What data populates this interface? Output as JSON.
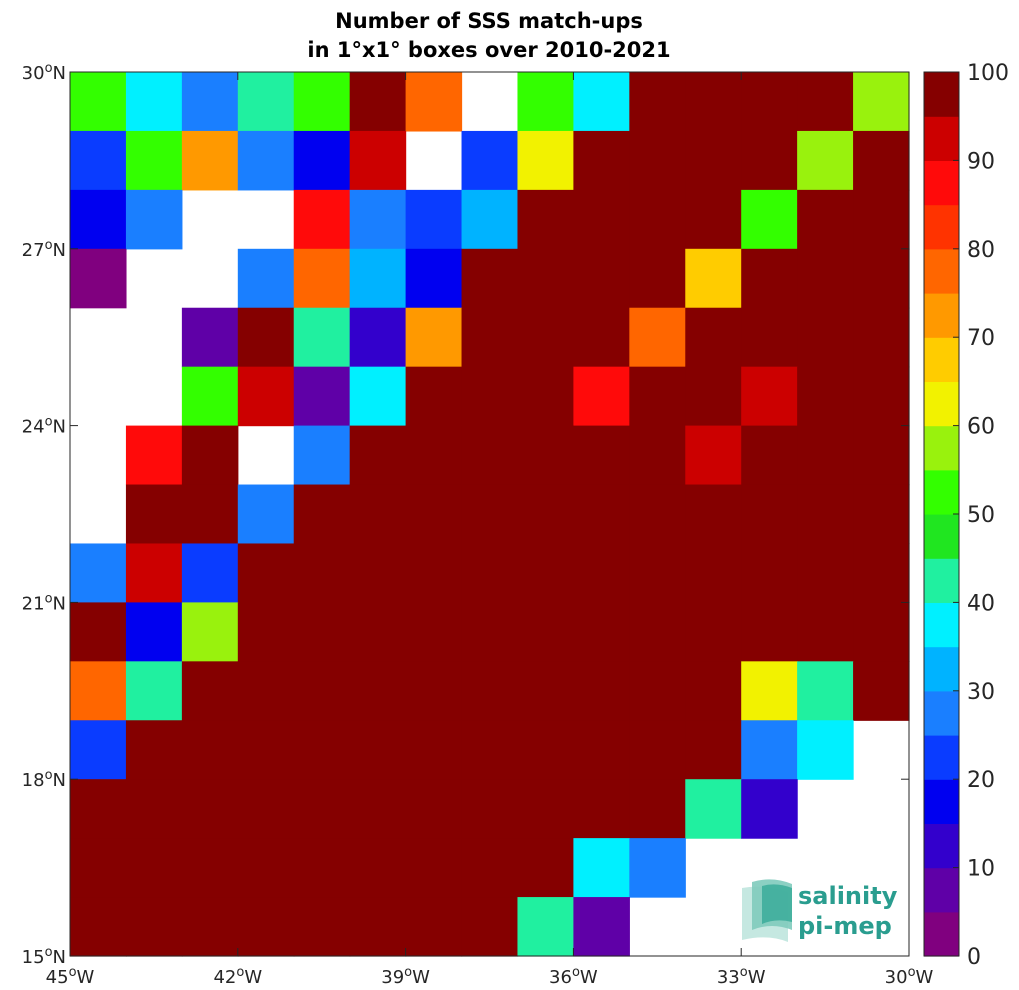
{
  "chart_data": {
    "type": "heatmap",
    "title": [
      "Number of SSS match-ups",
      "in 1°x1° boxes over 2010-2021"
    ],
    "xlim": [
      -45,
      -30
    ],
    "ylim": [
      15,
      30
    ],
    "x_ticks": [
      {
        "value": -45,
        "deg": "45",
        "hemi": "W"
      },
      {
        "value": -42,
        "deg": "42",
        "hemi": "W"
      },
      {
        "value": -39,
        "deg": "39",
        "hemi": "W"
      },
      {
        "value": -36,
        "deg": "36",
        "hemi": "W"
      },
      {
        "value": -33,
        "deg": "33",
        "hemi": "W"
      },
      {
        "value": -30,
        "deg": "30",
        "hemi": "W"
      }
    ],
    "y_ticks": [
      {
        "value": 15,
        "deg": "15",
        "hemi": "N"
      },
      {
        "value": 18,
        "deg": "18",
        "hemi": "N"
      },
      {
        "value": 21,
        "deg": "21",
        "hemi": "N"
      },
      {
        "value": 24,
        "deg": "24",
        "hemi": "N"
      },
      {
        "value": 27,
        "deg": "27",
        "hemi": "N"
      },
      {
        "value": 30,
        "deg": "30",
        "hemi": "N"
      }
    ],
    "grid_rows_note": "rows ordered north (29-30N) to south (15-16N), columns west (45-44W) to east (31-30W); null = no data",
    "values": [
      [
        52,
        37,
        27,
        42,
        52,
        100,
        78,
        null,
        52,
        36,
        100,
        100,
        100,
        100,
        58
      ],
      [
        22,
        52,
        73,
        27,
        17,
        93,
        null,
        22,
        62,
        100,
        100,
        100,
        100,
        58,
        100
      ],
      [
        17,
        27,
        null,
        null,
        88,
        27,
        22,
        32,
        100,
        100,
        100,
        100,
        52,
        100,
        100
      ],
      [
        3,
        null,
        null,
        27,
        78,
        32,
        17,
        100,
        100,
        100,
        100,
        68,
        100,
        100,
        100
      ],
      [
        null,
        null,
        8,
        100,
        42,
        12,
        73,
        100,
        100,
        100,
        78,
        100,
        100,
        100,
        100
      ],
      [
        null,
        null,
        52,
        93,
        8,
        37,
        100,
        100,
        100,
        88,
        100,
        100,
        93,
        100,
        100
      ],
      [
        null,
        88,
        100,
        null,
        27,
        100,
        100,
        100,
        100,
        100,
        100,
        93,
        100,
        100,
        100
      ],
      [
        null,
        100,
        100,
        27,
        100,
        100,
        100,
        100,
        100,
        100,
        100,
        100,
        100,
        100,
        100
      ],
      [
        27,
        93,
        22,
        100,
        100,
        100,
        100,
        100,
        100,
        100,
        100,
        100,
        100,
        100,
        100
      ],
      [
        100,
        17,
        58,
        100,
        100,
        100,
        100,
        100,
        100,
        100,
        100,
        100,
        100,
        100,
        100
      ],
      [
        78,
        42,
        100,
        100,
        100,
        100,
        100,
        100,
        100,
        100,
        100,
        100,
        62,
        42,
        100
      ],
      [
        22,
        100,
        100,
        100,
        100,
        100,
        100,
        100,
        100,
        100,
        100,
        100,
        27,
        37,
        null
      ],
      [
        100,
        100,
        100,
        100,
        100,
        100,
        100,
        100,
        100,
        100,
        100,
        42,
        12,
        null,
        null
      ],
      [
        100,
        100,
        100,
        100,
        100,
        100,
        100,
        100,
        100,
        37,
        27,
        null,
        null,
        null,
        null
      ],
      [
        100,
        100,
        100,
        100,
        100,
        100,
        100,
        100,
        42,
        8,
        null,
        null,
        null,
        null,
        null
      ]
    ],
    "colorbar": {
      "min": 0,
      "max": 100,
      "ticks": [
        "0",
        "10",
        "20",
        "30",
        "40",
        "50",
        "60",
        "70",
        "80",
        "90",
        "100"
      ],
      "colors": [
        "#80007f",
        "#5f00a7",
        "#3300cc",
        "#0000f0",
        "#0a3cff",
        "#1a7fff",
        "#00b3ff",
        "#00f0ff",
        "#20f0a0",
        "#20e620",
        "#33ff00",
        "#99f20d",
        "#f2f200",
        "#ffcc00",
        "#ff9900",
        "#ff6600",
        "#ff3300",
        "#ff0a0a",
        "#cc0000",
        "#850000"
      ]
    }
  },
  "logo": {
    "line1": "salinity",
    "line2": "pi-mep",
    "color": "#2a9d8f"
  }
}
